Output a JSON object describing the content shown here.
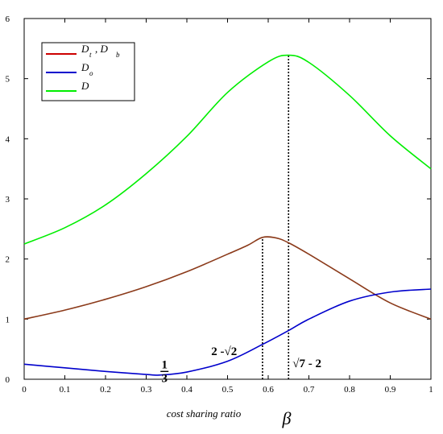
{
  "chart_data": {
    "type": "line",
    "xlabel": "cost sharing ratio",
    "xsymbol": "β",
    "ylabel": "",
    "xlim": [
      0,
      1
    ],
    "ylim": [
      0,
      6
    ],
    "xticks": [
      "0",
      "0.1",
      "0.2",
      "0.3",
      "0.4",
      "0.5",
      "0.6",
      "0.7",
      "0.8",
      "0.9",
      "1"
    ],
    "yticks": [
      "0",
      "1",
      "2",
      "3",
      "4",
      "5",
      "6"
    ],
    "grid": false,
    "legend_position": "top-left",
    "legend": [
      {
        "label": "D",
        "sub": "t",
        "label2": ", D",
        "sub2": "b",
        "color": "#cc0000"
      },
      {
        "label": "D",
        "sub": "o",
        "color": "#0000cc"
      },
      {
        "label": "D",
        "sub": "",
        "color": "#00ee00"
      }
    ],
    "series": [
      {
        "color": "#8b3a1a",
        "x": [
          0,
          0.1,
          0.2,
          0.3,
          0.4,
          0.5,
          0.55,
          0.586,
          0.62,
          0.65,
          0.7,
          0.8,
          0.9,
          1.0
        ],
        "values": [
          1.0,
          1.15,
          1.33,
          1.54,
          1.79,
          2.08,
          2.23,
          2.36,
          2.35,
          2.27,
          2.08,
          1.67,
          1.27,
          1.0
        ]
      },
      {
        "color": "#0000cc",
        "x": [
          0,
          0.1,
          0.2,
          0.3,
          0.333,
          0.4,
          0.5,
          0.586,
          0.65,
          0.7,
          0.8,
          0.9,
          1.0
        ],
        "values": [
          0.25,
          0.19,
          0.13,
          0.08,
          0.07,
          0.12,
          0.3,
          0.58,
          0.81,
          1.0,
          1.3,
          1.45,
          1.5
        ]
      },
      {
        "color": "#00ee00",
        "x": [
          0,
          0.1,
          0.2,
          0.3,
          0.4,
          0.5,
          0.6,
          0.65,
          0.7,
          0.8,
          0.9,
          1.0
        ],
        "values": [
          2.25,
          2.52,
          2.9,
          3.42,
          4.04,
          4.77,
          5.28,
          5.39,
          5.27,
          4.72,
          4.05,
          3.5
        ]
      }
    ],
    "vlines": [
      {
        "x": 0.586,
        "y": 2.36
      },
      {
        "x": 0.65,
        "y": 5.39
      }
    ],
    "annotations": [
      {
        "id": "third",
        "num": "1",
        "den": "3",
        "x": 0.345,
        "y": 0.13
      },
      {
        "id": "two-minus-root2",
        "text": "2 -√2",
        "x": 0.46,
        "y": 0.4
      },
      {
        "id": "root7-minus-2",
        "text": "√7 - 2",
        "x": 0.66,
        "y": 0.2
      }
    ]
  }
}
